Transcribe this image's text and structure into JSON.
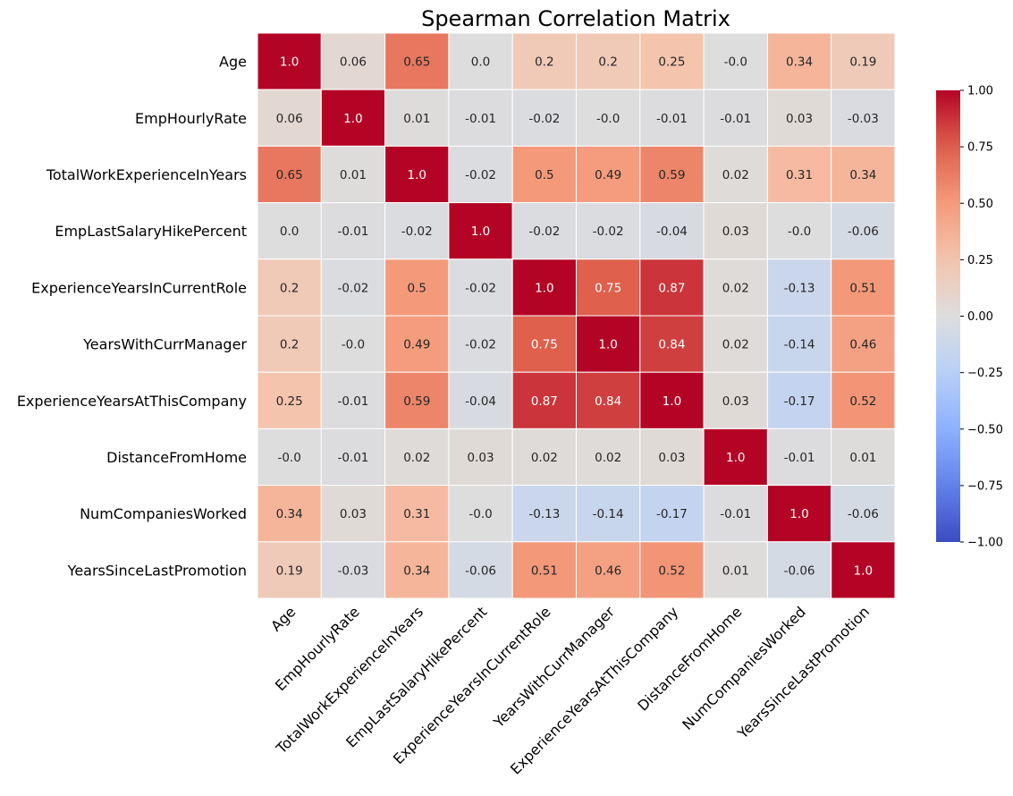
{
  "chart_data": {
    "type": "heatmap",
    "title": "Spearman Correlation Matrix",
    "row_labels": [
      "Age",
      "EmpHourlyRate",
      "TotalWorkExperienceInYears",
      "EmpLastSalaryHikePercent",
      "ExperienceYearsInCurrentRole",
      "YearsWithCurrManager",
      "ExperienceYearsAtThisCompany",
      "DistanceFromHome",
      "NumCompaniesWorked",
      "YearsSinceLastPromotion"
    ],
    "col_labels": [
      "Age",
      "EmpHourlyRate",
      "TotalWorkExperienceInYears",
      "EmpLastSalaryHikePercent",
      "ExperienceYearsInCurrentRole",
      "YearsWithCurrManager",
      "ExperienceYearsAtThisCompany",
      "DistanceFromHome",
      "NumCompaniesWorked",
      "YearsSinceLastPromotion"
    ],
    "values": [
      [
        1.0,
        0.06,
        0.65,
        0.0,
        0.2,
        0.2,
        0.25,
        -0.0,
        0.34,
        0.19
      ],
      [
        0.06,
        1.0,
        0.01,
        -0.01,
        -0.02,
        -0.0,
        -0.01,
        -0.01,
        0.03,
        -0.03
      ],
      [
        0.65,
        0.01,
        1.0,
        -0.02,
        0.5,
        0.49,
        0.59,
        0.02,
        0.31,
        0.34
      ],
      [
        0.0,
        -0.01,
        -0.02,
        1.0,
        -0.02,
        -0.02,
        -0.04,
        0.03,
        -0.0,
        -0.06
      ],
      [
        0.2,
        -0.02,
        0.5,
        -0.02,
        1.0,
        0.75,
        0.87,
        0.02,
        -0.13,
        0.51
      ],
      [
        0.2,
        -0.0,
        0.49,
        -0.02,
        0.75,
        1.0,
        0.84,
        0.02,
        -0.14,
        0.46
      ],
      [
        0.25,
        -0.01,
        0.59,
        -0.04,
        0.87,
        0.84,
        1.0,
        0.03,
        -0.17,
        0.52
      ],
      [
        -0.0,
        -0.01,
        0.02,
        0.03,
        0.02,
        0.02,
        0.03,
        1.0,
        -0.01,
        0.01
      ],
      [
        0.34,
        0.03,
        0.31,
        -0.0,
        -0.13,
        -0.14,
        -0.17,
        -0.01,
        1.0,
        -0.06
      ],
      [
        0.19,
        -0.03,
        0.34,
        -0.06,
        0.51,
        0.46,
        0.52,
        0.01,
        -0.06,
        1.0
      ]
    ],
    "cell_labels": [
      [
        "1.0",
        "0.06",
        "0.65",
        "0.0",
        "0.2",
        "0.2",
        "0.25",
        "-0.0",
        "0.34",
        "0.19"
      ],
      [
        "0.06",
        "1.0",
        "0.01",
        "-0.01",
        "-0.02",
        "-0.0",
        "-0.01",
        "-0.01",
        "0.03",
        "-0.03"
      ],
      [
        "0.65",
        "0.01",
        "1.0",
        "-0.02",
        "0.5",
        "0.49",
        "0.59",
        "0.02",
        "0.31",
        "0.34"
      ],
      [
        "0.0",
        "-0.01",
        "-0.02",
        "1.0",
        "-0.02",
        "-0.02",
        "-0.04",
        "0.03",
        "-0.0",
        "-0.06"
      ],
      [
        "0.2",
        "-0.02",
        "0.5",
        "-0.02",
        "1.0",
        "0.75",
        "0.87",
        "0.02",
        "-0.13",
        "0.51"
      ],
      [
        "0.2",
        "-0.0",
        "0.49",
        "-0.02",
        "0.75",
        "1.0",
        "0.84",
        "0.02",
        "-0.14",
        "0.46"
      ],
      [
        "0.25",
        "-0.01",
        "0.59",
        "-0.04",
        "0.87",
        "0.84",
        "1.0",
        "0.03",
        "-0.17",
        "0.52"
      ],
      [
        "-0.0",
        "-0.01",
        "0.02",
        "0.03",
        "0.02",
        "0.02",
        "0.03",
        "1.0",
        "-0.01",
        "0.01"
      ],
      [
        "0.34",
        "0.03",
        "0.31",
        "-0.0",
        "-0.13",
        "-0.14",
        "-0.17",
        "-0.01",
        "1.0",
        "-0.06"
      ],
      [
        "0.19",
        "-0.03",
        "0.34",
        "-0.06",
        "0.51",
        "0.46",
        "0.52",
        "0.01",
        "-0.06",
        "1.0"
      ]
    ],
    "colormap": "coolwarm",
    "vmin": -1.0,
    "vmax": 1.0,
    "colorbar": {
      "ticks": [
        -1.0,
        -0.75,
        -0.5,
        -0.25,
        0.0,
        0.25,
        0.5,
        0.75,
        1.0
      ],
      "tick_labels": [
        "−1.00",
        "−0.75",
        "−0.50",
        "−0.25",
        "0.00",
        "0.25",
        "0.50",
        "0.75",
        "1.00"
      ],
      "placement": "right"
    },
    "grid": false,
    "cell_border_color": "#ffffff"
  }
}
